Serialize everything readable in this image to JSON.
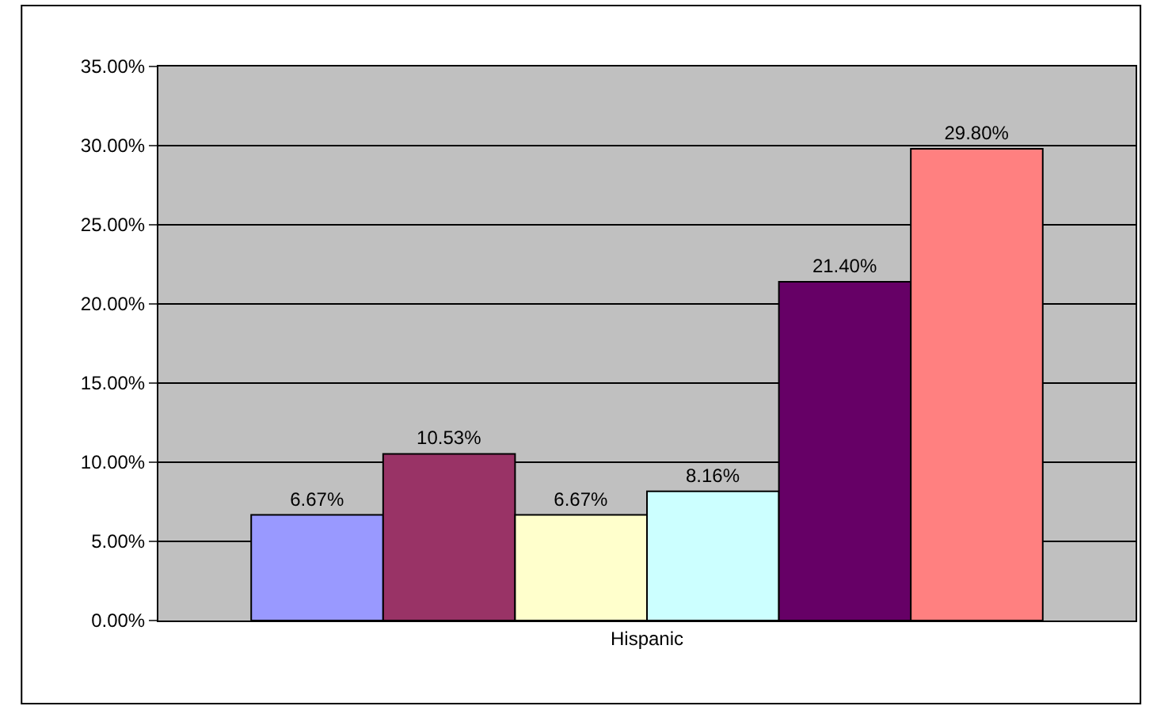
{
  "chart_data": {
    "type": "bar",
    "categories": [
      "Hispanic"
    ],
    "series": [
      {
        "color": "#9999ff",
        "values": [
          6.67
        ],
        "value_labels": [
          "6.67%"
        ]
      },
      {
        "color": "#993366",
        "values": [
          10.53
        ],
        "value_labels": [
          "10.53%"
        ]
      },
      {
        "color": "#ffffcc",
        "values": [
          6.67
        ],
        "value_labels": [
          "6.67%"
        ]
      },
      {
        "color": "#ccffff",
        "values": [
          8.16
        ],
        "value_labels": [
          "8.16%"
        ]
      },
      {
        "color": "#660066",
        "values": [
          21.4
        ],
        "value_labels": [
          "21.40%"
        ]
      },
      {
        "color": "#ff8080",
        "values": [
          29.8
        ],
        "value_labels": [
          "29.80%"
        ]
      }
    ],
    "ylim": [
      0,
      35
    ],
    "yticks": [
      {
        "value": 0,
        "label": "0.00%"
      },
      {
        "value": 5,
        "label": "5.00%"
      },
      {
        "value": 10,
        "label": "10.00%"
      },
      {
        "value": 15,
        "label": "15.00%"
      },
      {
        "value": 20,
        "label": "20.00%"
      },
      {
        "value": 25,
        "label": "25.00%"
      },
      {
        "value": 30,
        "label": "30.00%"
      },
      {
        "value": 35,
        "label": "35.00%"
      }
    ],
    "grid": "y"
  }
}
